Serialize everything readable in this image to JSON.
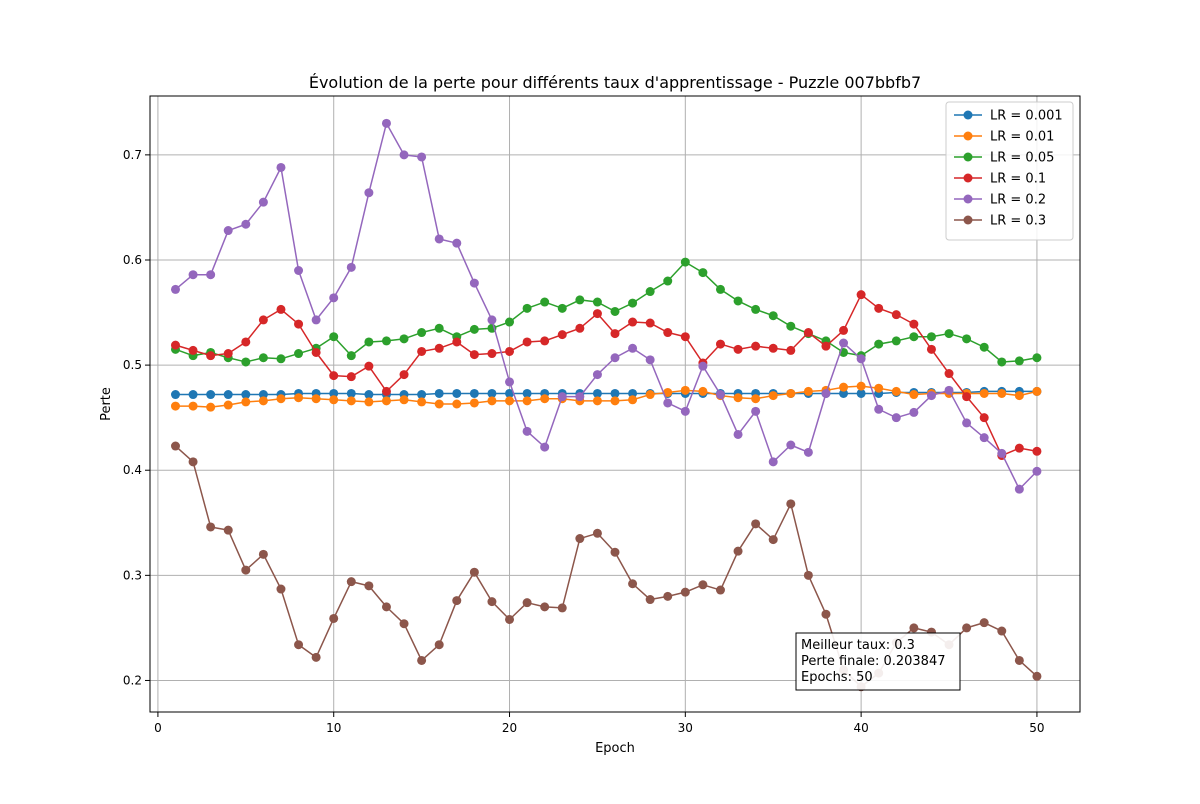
{
  "chart_data": {
    "type": "line",
    "title": "Évolution de la perte pour différents taux d'apprentissage - Puzzle 007bbfb7",
    "xlabel": "Epoch",
    "ylabel": "Perte",
    "xlim": [
      -0.45,
      52.45
    ],
    "ylim": [
      0.17,
      0.756
    ],
    "xticks": [
      0,
      10,
      20,
      30,
      40,
      50
    ],
    "yticks": [
      0.2,
      0.3,
      0.4,
      0.5,
      0.6,
      0.7
    ],
    "grid": true,
    "legend_position": "top-right",
    "x": [
      1,
      2,
      3,
      4,
      5,
      6,
      7,
      8,
      9,
      10,
      11,
      12,
      13,
      14,
      15,
      16,
      17,
      18,
      19,
      20,
      21,
      22,
      23,
      24,
      25,
      26,
      27,
      28,
      29,
      30,
      31,
      32,
      33,
      34,
      35,
      36,
      37,
      38,
      39,
      40,
      41,
      42,
      43,
      44,
      45,
      46,
      47,
      48,
      49,
      50
    ],
    "series": [
      {
        "name": "LR = 0.001",
        "color": "#1f77b4",
        "values": [
          0.472,
          0.472,
          0.472,
          0.472,
          0.472,
          0.472,
          0.472,
          0.473,
          0.473,
          0.473,
          0.473,
          0.472,
          0.472,
          0.472,
          0.472,
          0.473,
          0.473,
          0.473,
          0.473,
          0.473,
          0.473,
          0.473,
          0.473,
          0.473,
          0.473,
          0.473,
          0.473,
          0.473,
          0.473,
          0.473,
          0.473,
          0.473,
          0.473,
          0.473,
          0.473,
          0.473,
          0.473,
          0.473,
          0.473,
          0.473,
          0.473,
          0.474,
          0.474,
          0.474,
          0.474,
          0.474,
          0.475,
          0.475,
          0.475,
          0.475
        ]
      },
      {
        "name": "LR = 0.01",
        "color": "#ff7f0e",
        "values": [
          0.461,
          0.461,
          0.46,
          0.462,
          0.465,
          0.466,
          0.468,
          0.469,
          0.468,
          0.467,
          0.466,
          0.465,
          0.466,
          0.467,
          0.465,
          0.463,
          0.463,
          0.464,
          0.466,
          0.466,
          0.466,
          0.468,
          0.468,
          0.466,
          0.466,
          0.466,
          0.467,
          0.472,
          0.474,
          0.476,
          0.475,
          0.471,
          0.469,
          0.468,
          0.471,
          0.473,
          0.475,
          0.476,
          0.479,
          0.48,
          0.478,
          0.475,
          0.472,
          0.473,
          0.473,
          0.473,
          0.473,
          0.473,
          0.471,
          0.475
        ]
      },
      {
        "name": "LR = 0.05",
        "color": "#2ca02c",
        "values": [
          0.515,
          0.509,
          0.512,
          0.507,
          0.503,
          0.507,
          0.506,
          0.511,
          0.516,
          0.527,
          0.509,
          0.522,
          0.523,
          0.525,
          0.531,
          0.535,
          0.527,
          0.534,
          0.535,
          0.541,
          0.554,
          0.56,
          0.554,
          0.562,
          0.56,
          0.551,
          0.559,
          0.57,
          0.58,
          0.598,
          0.588,
          0.572,
          0.561,
          0.553,
          0.547,
          0.537,
          0.53,
          0.523,
          0.512,
          0.509,
          0.52,
          0.523,
          0.527,
          0.527,
          0.53,
          0.525,
          0.517,
          0.503,
          0.504,
          0.507
        ]
      },
      {
        "name": "LR = 0.1",
        "color": "#d62728",
        "values": [
          0.519,
          0.514,
          0.509,
          0.511,
          0.522,
          0.543,
          0.553,
          0.539,
          0.512,
          0.49,
          0.489,
          0.499,
          0.475,
          0.491,
          0.513,
          0.516,
          0.522,
          0.51,
          0.511,
          0.513,
          0.522,
          0.523,
          0.529,
          0.535,
          0.549,
          0.53,
          0.541,
          0.54,
          0.531,
          0.527,
          0.502,
          0.52,
          0.515,
          0.518,
          0.516,
          0.514,
          0.531,
          0.518,
          0.533,
          0.567,
          0.554,
          0.548,
          0.539,
          0.515,
          0.492,
          0.47,
          0.45,
          0.414,
          0.421,
          0.418
        ]
      },
      {
        "name": "LR = 0.2",
        "color": "#9467bd",
        "values": [
          0.572,
          0.586,
          0.586,
          0.628,
          0.634,
          0.655,
          0.688,
          0.59,
          0.543,
          0.564,
          0.593,
          0.664,
          0.73,
          0.7,
          0.698,
          0.62,
          0.616,
          0.578,
          0.543,
          0.484,
          0.437,
          0.422,
          0.47,
          0.47,
          0.491,
          0.507,
          0.516,
          0.505,
          0.464,
          0.456,
          0.499,
          0.472,
          0.434,
          0.456,
          0.408,
          0.424,
          0.417,
          0.473,
          0.521,
          0.506,
          0.458,
          0.45,
          0.455,
          0.471,
          0.476,
          0.445,
          0.431,
          0.416,
          0.382,
          0.399
        ]
      },
      {
        "name": "LR = 0.3",
        "color": "#8c564b",
        "values": [
          0.423,
          0.408,
          0.346,
          0.343,
          0.305,
          0.32,
          0.287,
          0.234,
          0.222,
          0.259,
          0.294,
          0.29,
          0.27,
          0.254,
          0.219,
          0.234,
          0.276,
          0.303,
          0.275,
          0.258,
          0.274,
          0.27,
          0.269,
          0.335,
          0.34,
          0.322,
          0.292,
          0.277,
          0.28,
          0.284,
          0.291,
          0.286,
          0.323,
          0.349,
          0.334,
          0.368,
          0.3,
          0.263,
          0.21,
          0.194,
          0.207,
          0.236,
          0.25,
          0.246,
          0.234,
          0.25,
          0.255,
          0.247,
          0.219,
          0.204
        ]
      }
    ],
    "annotation": {
      "lines": [
        "Meilleur taux: 0.3",
        "Perte finale: 0.203847",
        "Epochs: 50"
      ]
    }
  }
}
